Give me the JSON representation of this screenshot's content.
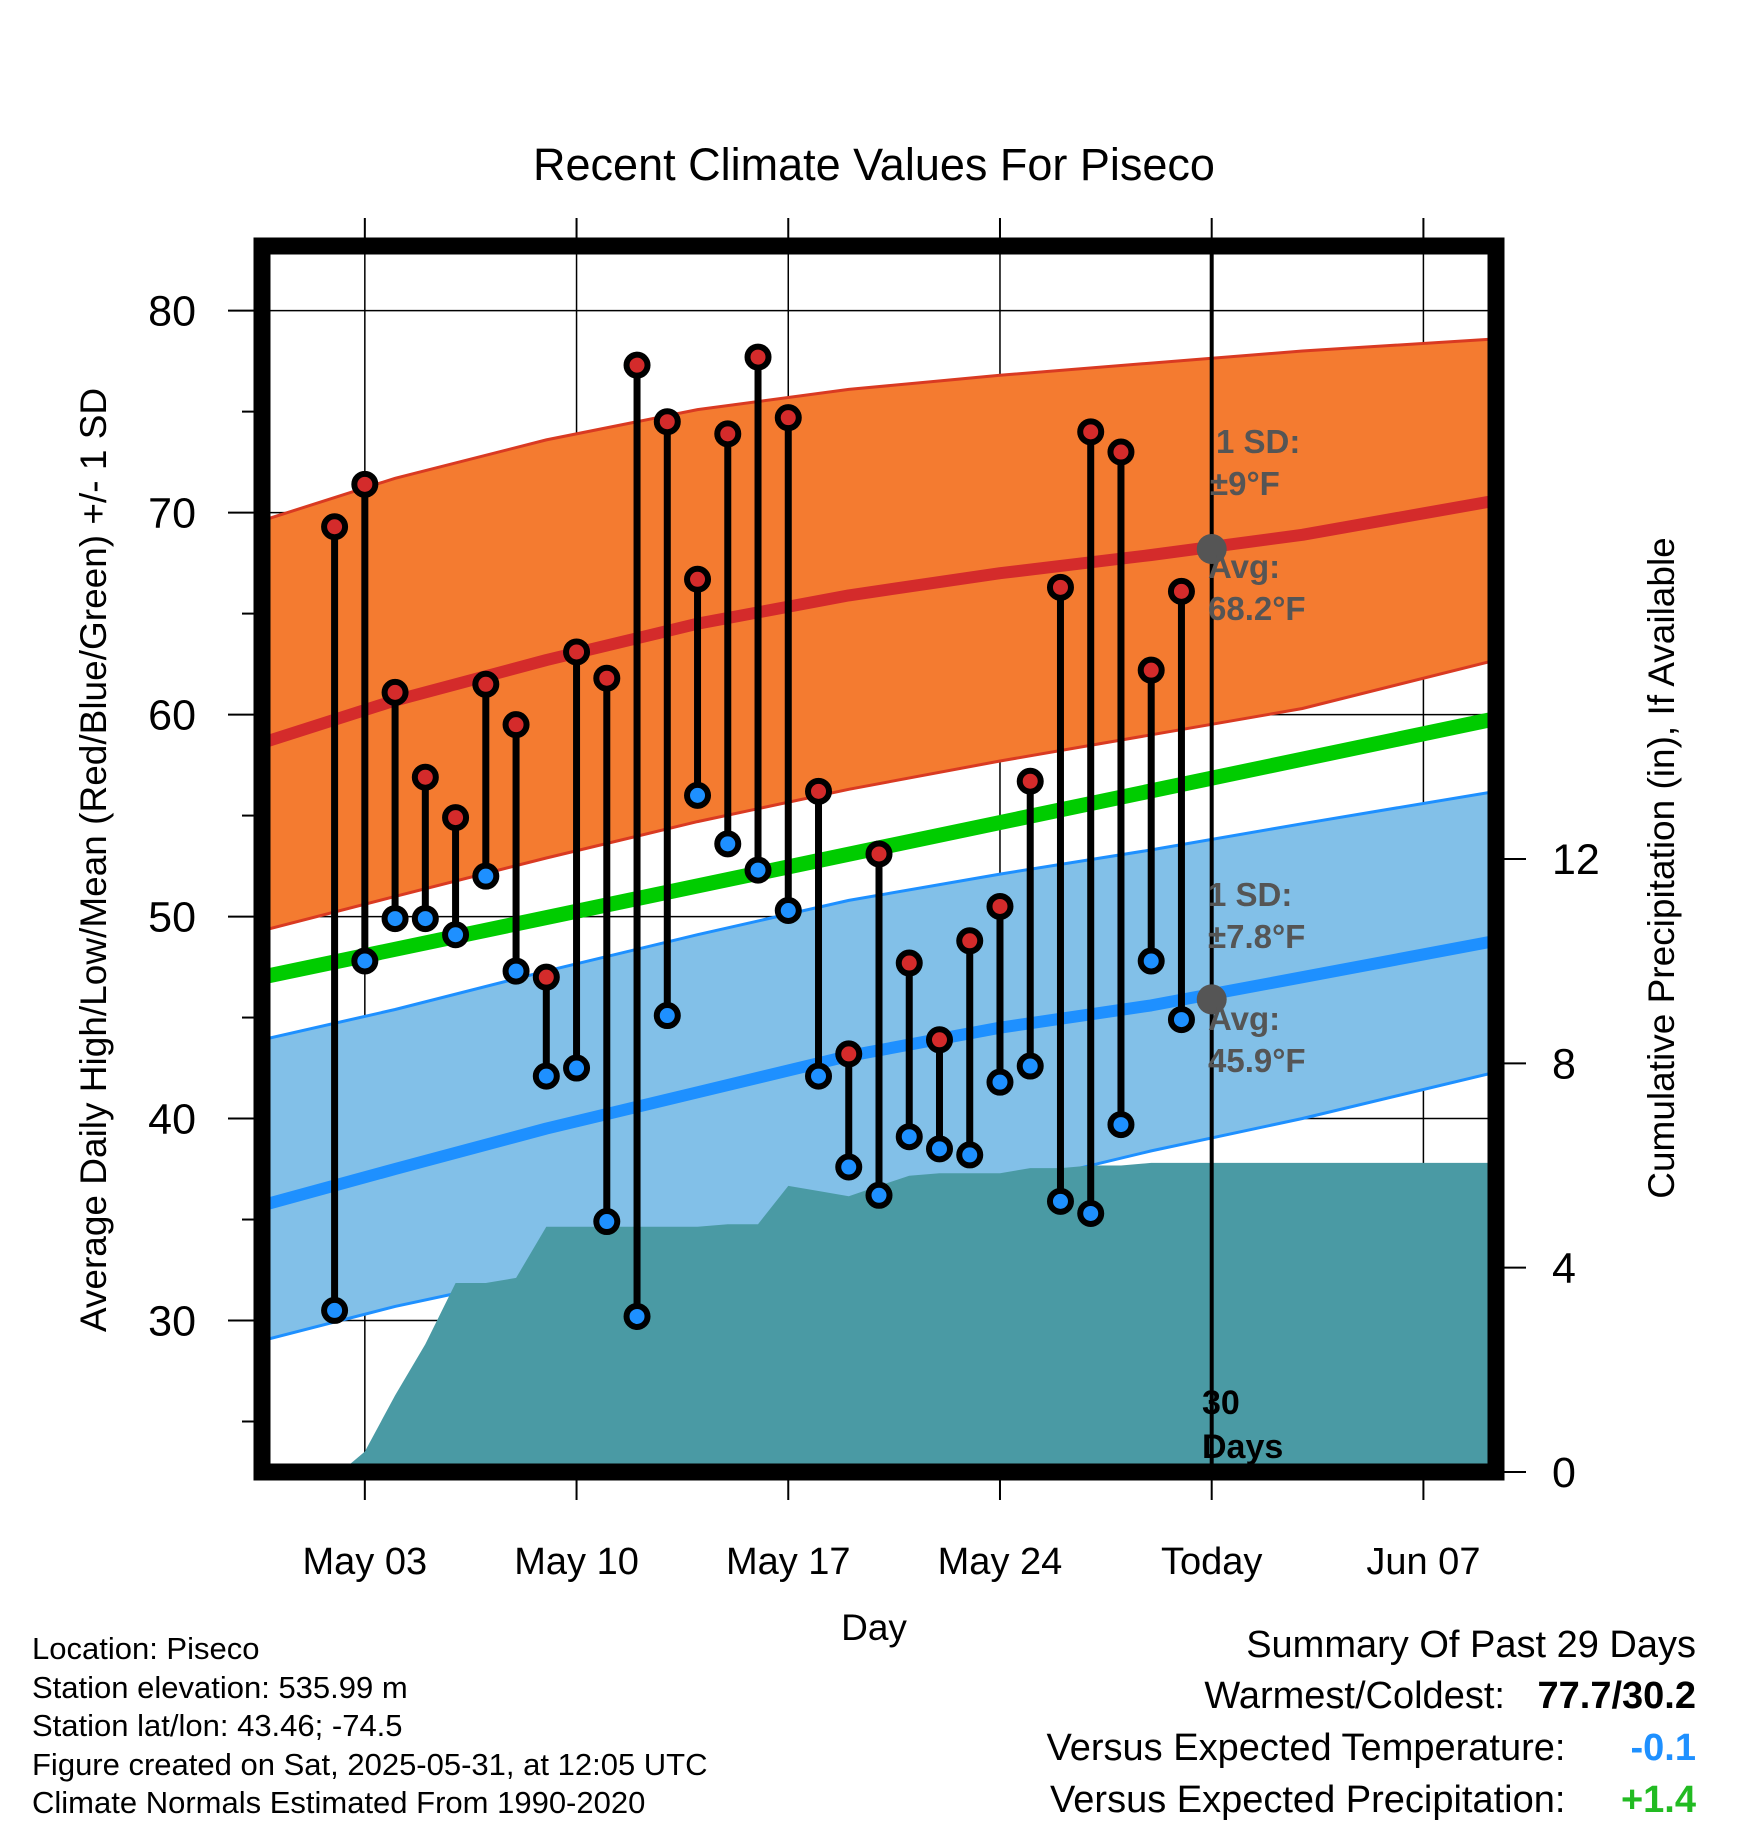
{
  "chart_data": {
    "type": "line",
    "title": "Recent Climate Values For Piseco",
    "xlabel": "Day",
    "ylabel": "Average Daily High/Low/Mean (Red/Blue/Green) +/- 1 SD",
    "y2label": "Cumulative Precipitation (in), If Available",
    "ylim": [
      22.5,
      83.2
    ],
    "y2lim": [
      0,
      24
    ],
    "xlim_days": [
      -31.4,
      9.4
    ],
    "y_ticks": [
      "30",
      "40",
      "50",
      "60",
      "70",
      "80"
    ],
    "y2_ticks": [
      "0",
      "4",
      "8",
      "12"
    ],
    "x_ticks": [
      {
        "day": -28,
        "label": "May 03"
      },
      {
        "day": -21,
        "label": "May 10"
      },
      {
        "day": -14,
        "label": "May 17"
      },
      {
        "day": -7,
        "label": "May 24"
      },
      {
        "day": 0,
        "label": "Today"
      },
      {
        "day": 7,
        "label": "Jun 07"
      }
    ],
    "grid": true,
    "today_day": 0,
    "today_label_line1": "30",
    "today_label_line2": "Days",
    "days": [
      -29,
      -28,
      -27,
      -26,
      -25,
      -24,
      -23,
      -22,
      -21,
      -20,
      -19,
      -18,
      -17,
      -16,
      -15,
      -14,
      -13,
      -12,
      -11,
      -10,
      -9,
      -8,
      -7,
      -6,
      -5,
      -4,
      -3,
      -2,
      -1
    ],
    "highs": [
      69.3,
      71.4,
      61.1,
      56.9,
      54.9,
      61.5,
      59.5,
      47.0,
      63.1,
      61.8,
      77.3,
      74.5,
      66.7,
      73.9,
      77.7,
      74.7,
      56.2,
      43.2,
      53.1,
      47.7,
      43.9,
      48.8,
      50.5,
      56.7,
      66.3,
      74.0,
      73.0,
      62.2,
      66.1
    ],
    "lows": [
      30.5,
      47.8,
      49.9,
      49.9,
      49.1,
      52.0,
      47.3,
      42.1,
      42.5,
      34.9,
      30.2,
      45.1,
      56.0,
      53.6,
      52.3,
      50.3,
      42.1,
      37.6,
      36.2,
      39.1,
      38.5,
      38.2,
      41.8,
      42.6,
      35.9,
      35.3,
      39.7,
      47.8,
      44.9
    ],
    "normal_high": {
      "x": [
        -31.4,
        -27,
        -22,
        -17,
        -12,
        -7,
        -2,
        3,
        9.4
      ],
      "values": [
        58.6,
        60.7,
        62.7,
        64.5,
        65.9,
        67.0,
        67.9,
        68.9,
        70.6
      ]
    },
    "normal_high_sd_band": {
      "x": [
        -31.4,
        -27,
        -22,
        -17,
        -12,
        -7,
        -2,
        3,
        9.4
      ],
      "upper": [
        69.6,
        71.7,
        73.6,
        75.1,
        76.1,
        76.8,
        77.4,
        78.0,
        78.6
      ],
      "lower": [
        49.3,
        51.0,
        52.9,
        54.7,
        56.3,
        57.7,
        59.0,
        60.3,
        62.7
      ]
    },
    "normal_mean": {
      "x": [
        -31.4,
        9.4
      ],
      "values": [
        47.0,
        59.8
      ]
    },
    "normal_low": {
      "x": [
        -31.4,
        -27,
        -22,
        -17,
        -12,
        -7,
        -2,
        3,
        9.4
      ],
      "values": [
        35.7,
        37.5,
        39.5,
        41.3,
        43.1,
        44.5,
        45.6,
        47.0,
        48.8
      ]
    },
    "normal_low_sd_band": {
      "x": [
        -31.4,
        -27,
        -22,
        -17,
        -12,
        -7,
        -2,
        3,
        9.4
      ],
      "upper": [
        43.9,
        45.4,
        47.3,
        49.1,
        50.8,
        52.1,
        53.3,
        54.6,
        56.2
      ],
      "lower": [
        29.0,
        30.7,
        32.3,
        33.9,
        35.3,
        36.6,
        38.4,
        40.0,
        42.3
      ]
    },
    "precip_cumulative": {
      "x": [
        -31.4,
        -28.8,
        -28,
        -27,
        -26,
        -25,
        -24,
        -23,
        -22,
        -21,
        -20,
        -19,
        -18,
        -17,
        -16,
        -15,
        -14,
        -13,
        -12,
        -11,
        -10,
        -9,
        -8,
        -7,
        -6,
        -5,
        -4,
        -3,
        -2,
        -1,
        0,
        9.4
      ],
      "values": [
        0,
        0,
        0.4,
        1.5,
        2.5,
        3.7,
        3.7,
        3.8,
        4.8,
        4.8,
        4.8,
        4.8,
        4.8,
        4.8,
        4.85,
        4.85,
        5.6,
        5.5,
        5.4,
        5.6,
        5.8,
        5.85,
        5.85,
        5.85,
        5.95,
        5.95,
        6.0,
        6.0,
        6.05,
        6.05,
        6.05,
        6.05
      ]
    },
    "annotations": {
      "high_sd_line1": "1 SD:",
      "high_sd_line2": "±9°F",
      "high_avg_line1": "Avg:",
      "high_avg_line2": "68.2°F",
      "high_avg_value": 68.2,
      "low_sd_line1": "1 SD:",
      "low_sd_line2": "±7.8°F",
      "low_avg_line1": "Avg:",
      "low_avg_line2": "45.9°F",
      "low_avg_value": 45.9
    },
    "colors": {
      "high_band": "#f47b30",
      "high_band_edge": "#d93a22",
      "high_line": "#d42b2b",
      "mean_line": "#00cc00",
      "low_band": "#82c0e8",
      "low_band_edge": "#1e90ff",
      "low_line": "#1e90ff",
      "precip": "#4a9aa4",
      "high_dot": "#d42b2b",
      "low_dot": "#1e90ff",
      "annotation": "#555555",
      "today_dot": "#555555"
    }
  },
  "info": {
    "location": "Location: Piseco",
    "elevation": "Station elevation: 535.99 m",
    "latlon": "Station lat/lon: 43.46; -74.5",
    "created": "Figure created on Sat, 2025-05-31, at 12:05 UTC",
    "normals": "Climate Normals Estimated From 1990-2020"
  },
  "summary": {
    "title": "Summary Of Past 29 Days",
    "warm_cold_label": "Warmest/Coldest:",
    "warm_cold_value": "77.7/30.2",
    "temp_label": "Versus Expected Temperature:",
    "temp_value": "-0.1",
    "temp_color": "#1e90ff",
    "precip_label": "Versus Expected Precipitation:",
    "precip_value": "+1.4",
    "precip_color": "#22bb22"
  }
}
